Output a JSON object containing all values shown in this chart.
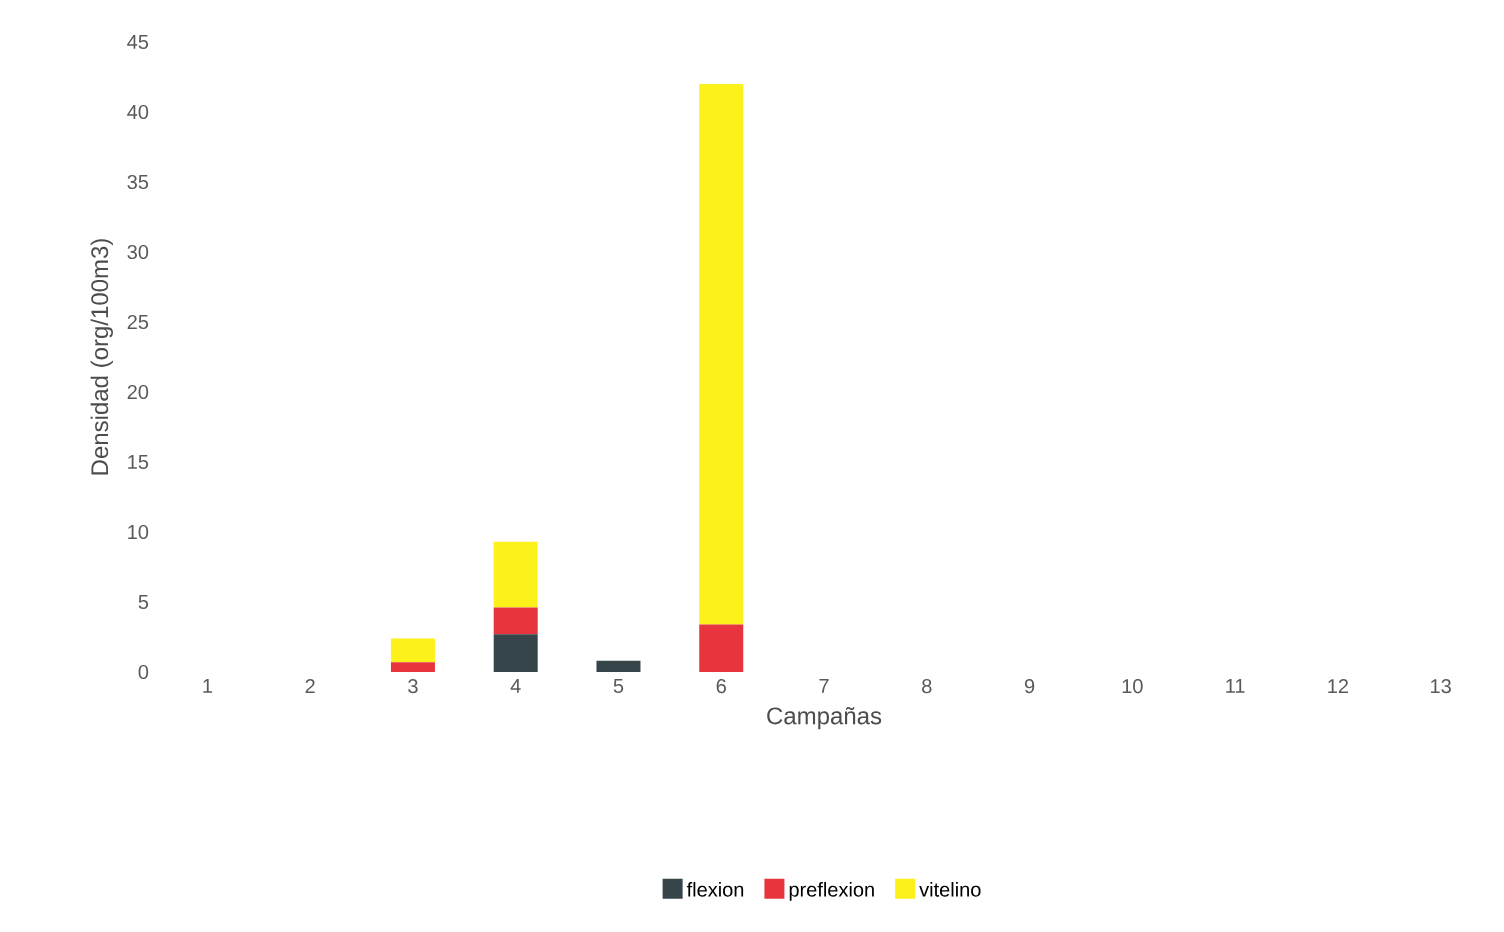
{
  "chart_data": {
    "type": "bar",
    "stacked": true,
    "xlabel": "Campañas",
    "ylabel": "Densidad (org/100m3)",
    "categories": [
      "1",
      "2",
      "3",
      "4",
      "5",
      "6",
      "7",
      "8",
      "9",
      "10",
      "11",
      "12",
      "13"
    ],
    "series": [
      {
        "name": "flexion",
        "color": "#36454a",
        "values": [
          0,
          0,
          0,
          2.7,
          0.8,
          0,
          0,
          0,
          0,
          0,
          0,
          0,
          0
        ]
      },
      {
        "name": "preflexion",
        "color": "#e8343c",
        "values": [
          0,
          0,
          0.7,
          1.9,
          0,
          3.4,
          0,
          0,
          0,
          0,
          0,
          0,
          0
        ]
      },
      {
        "name": "vitelino",
        "color": "#fcf11a",
        "values": [
          0,
          0,
          1.7,
          4.7,
          0,
          38.6,
          0,
          0,
          0,
          0,
          0,
          0,
          0
        ]
      }
    ],
    "ylim": [
      0,
      45
    ],
    "yticks": [
      0,
      5,
      10,
      15,
      20,
      25,
      30,
      35,
      40,
      45
    ],
    "legend": "bottom"
  }
}
